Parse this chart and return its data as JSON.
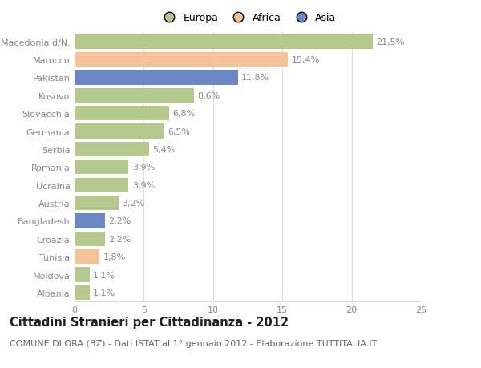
{
  "categories": [
    "Macedonia d/N.",
    "Marocco",
    "Pakistan",
    "Kosovo",
    "Slovacchia",
    "Germania",
    "Serbia",
    "Romania",
    "Ucraina",
    "Austria",
    "Bangladesh",
    "Croazia",
    "Tunisia",
    "Moldova",
    "Albania"
  ],
  "values": [
    21.5,
    15.4,
    11.8,
    8.6,
    6.8,
    6.5,
    5.4,
    3.9,
    3.9,
    3.2,
    2.2,
    2.2,
    1.8,
    1.1,
    1.1
  ],
  "labels": [
    "21,5%",
    "15,4%",
    "11,8%",
    "8,6%",
    "6,8%",
    "6,5%",
    "5,4%",
    "3,9%",
    "3,9%",
    "3,2%",
    "2,2%",
    "2,2%",
    "1,8%",
    "1,1%",
    "1,1%"
  ],
  "bar_colors": [
    "#b5c98e",
    "#f5c196",
    "#6b88c4",
    "#b5c98e",
    "#b5c98e",
    "#b5c98e",
    "#b5c98e",
    "#b5c98e",
    "#b5c98e",
    "#b5c98e",
    "#6b88c4",
    "#b5c98e",
    "#f5c196",
    "#b5c98e",
    "#b5c98e"
  ],
  "legend": [
    {
      "label": "Europa",
      "color": "#b5c98e"
    },
    {
      "label": "Africa",
      "color": "#f5c196"
    },
    {
      "label": "Asia",
      "color": "#6b88c4"
    }
  ],
  "title": "Cittadini Stranieri per Cittadinanza - 2012",
  "subtitle": "COMUNE DI ORA (BZ) - Dati ISTAT al 1° gennaio 2012 - Elaborazione TUTTITALIA.IT",
  "xlim": [
    0,
    25
  ],
  "xticks": [
    0,
    5,
    10,
    15,
    20,
    25
  ],
  "background_color": "#ffffff",
  "grid_color": "#dddddd",
  "bar_height": 0.82,
  "label_fontsize": 8.0,
  "title_fontsize": 10.5,
  "subtitle_fontsize": 8.0,
  "tick_fontsize": 8.0,
  "legend_fontsize": 9.0,
  "ytick_color": "#888888",
  "xtick_color": "#888888",
  "label_color": "#888888"
}
